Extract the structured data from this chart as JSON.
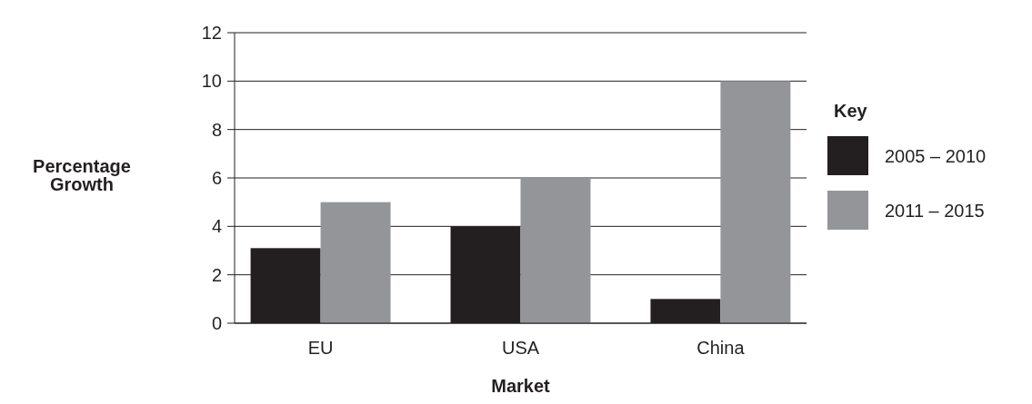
{
  "chart_data": {
    "type": "bar",
    "categories": [
      "EU",
      "USA",
      "China"
    ],
    "series": [
      {
        "name": "2005 – 2010",
        "color": "#231f20",
        "values": [
          3.1,
          4,
          1
        ]
      },
      {
        "name": "2011 – 2015",
        "color": "#939598",
        "values": [
          5,
          6,
          10
        ]
      }
    ],
    "xlabel": "Market",
    "ylabel": "Percentage Growth",
    "legend_title": "Key",
    "legend": "right",
    "ylim": [
      0,
      12
    ],
    "yticks": [
      0,
      2,
      4,
      6,
      8,
      10,
      12
    ],
    "grid": "y"
  }
}
